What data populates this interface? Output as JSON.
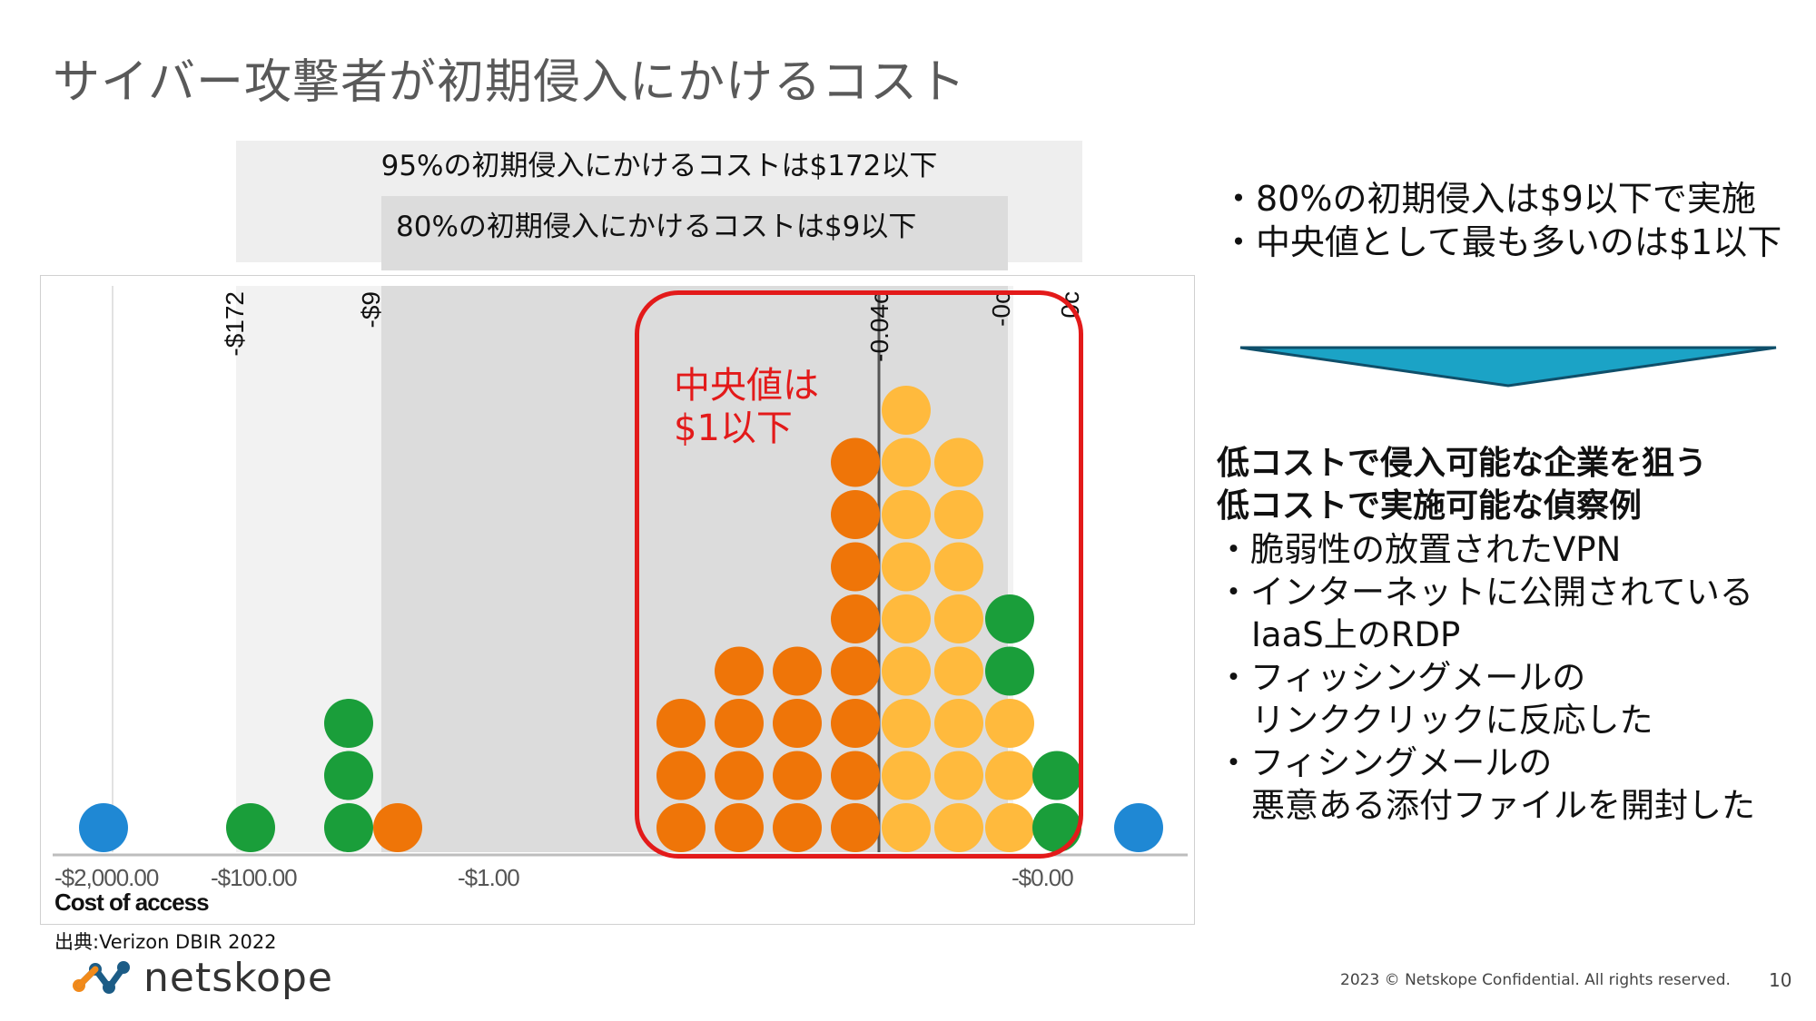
{
  "slide": {
    "title": "サイバー攻撃者が初期侵入にかけるコスト",
    "band95_label": "95%の初期侵入にかけるコストは$172以下",
    "band80_label": "80%の初期侵入にかけるコストは$9以下",
    "median_line1": "中央値は",
    "median_line2": "$1以下",
    "source": "出典:Verizon DBIR 2022",
    "logo_text": "netskope",
    "bullets_top": [
      "・80%の初期侵入は$9以下で実施",
      "・中央値として最も多いのは$1以下"
    ],
    "heading_line1": "低コストで侵入可能な企業を狙う",
    "heading_line2": "低コストで実施可能な偵察例",
    "bullets_main": [
      "・脆弱性の放置されたVPN",
      "・インターネットに公開されている",
      "IaaS上のRDP",
      "・フィッシングメールの",
      "リンククリックに反応した",
      "・フィシングメールの",
      "悪意ある添付ファイルを開封した"
    ],
    "footer": "2023 © Netskope Confidential. All rights reserved.",
    "page_number": "10",
    "colors": {
      "accent_red": "#e31a1a",
      "arrow": "#1ba3c6"
    }
  },
  "chart_data": {
    "type": "dot",
    "xlabel": "Cost of access",
    "x_ticks": [
      "-$2,000.00",
      "-$100.00",
      "-$1.00",
      "-$0.00"
    ],
    "reference_lines": [
      "-$172",
      "-$9",
      "-0.04c",
      "-0c",
      "0c"
    ],
    "series_colors": {
      "blue": "#1f88d4",
      "green": "#1a9e3a",
      "orange": "#ef7508",
      "yellow": "#ffba3d"
    },
    "columns": [
      {
        "color": "blue",
        "count": 1
      },
      {
        "color": "green",
        "count": 1
      },
      {
        "color": "green",
        "count": 3
      },
      {
        "color": "orange",
        "count": 1
      },
      {
        "color": "orange",
        "count": 3
      },
      {
        "color": "orange",
        "count": 4
      },
      {
        "color": "orange",
        "count": 4
      },
      {
        "color": "orange",
        "count": 8
      },
      {
        "color": "yellow",
        "count": 9
      },
      {
        "color": "yellow",
        "count": 8
      },
      {
        "color": "yellow",
        "stack": [
          [
            "yellow",
            3
          ],
          [
            "green",
            2
          ]
        ]
      },
      {
        "color": "green",
        "count": 2
      },
      {
        "color": "blue",
        "count": 1
      }
    ]
  }
}
